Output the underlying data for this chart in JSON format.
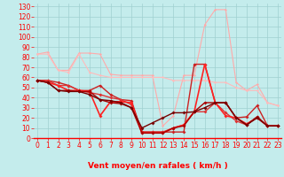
{
  "xlabel": "Vent moyen/en rafales ( km/h )",
  "background_color": "#c4ecec",
  "grid_color": "#a0d0d0",
  "x_ticks": [
    0,
    1,
    2,
    3,
    4,
    5,
    6,
    7,
    8,
    9,
    10,
    11,
    12,
    13,
    14,
    15,
    16,
    17,
    18,
    19,
    20,
    21,
    22,
    23
  ],
  "y_ticks": [
    0,
    10,
    20,
    30,
    40,
    50,
    60,
    70,
    80,
    90,
    100,
    110,
    120,
    130
  ],
  "ylim": [
    0,
    133
  ],
  "xlim": [
    -0.3,
    23.3
  ],
  "series": [
    {
      "color": "#ffaaaa",
      "linewidth": 0.8,
      "markersize": 1.5,
      "y": [
        83,
        85,
        67,
        67,
        84,
        84,
        83,
        63,
        62,
        62,
        62,
        62,
        12,
        22,
        62,
        62,
        112,
        127,
        127,
        55,
        47,
        53,
        35,
        32
      ]
    },
    {
      "color": "#ffbbbb",
      "linewidth": 0.8,
      "markersize": 1.5,
      "y": [
        83,
        83,
        67,
        65,
        83,
        65,
        62,
        60,
        60,
        60,
        60,
        60,
        60,
        57,
        57,
        57,
        57,
        55,
        55,
        50,
        47,
        47,
        35,
        32
      ]
    },
    {
      "color": "#cc2222",
      "linewidth": 1.0,
      "markersize": 2.0,
      "y": [
        57,
        57,
        55,
        52,
        47,
        47,
        52,
        43,
        38,
        37,
        6,
        6,
        6,
        6,
        6,
        73,
        73,
        35,
        35,
        20,
        21,
        32,
        12,
        12
      ]
    },
    {
      "color": "#dd3333",
      "linewidth": 1.0,
      "markersize": 2.0,
      "y": [
        57,
        57,
        52,
        52,
        47,
        45,
        43,
        40,
        38,
        33,
        6,
        6,
        6,
        10,
        13,
        26,
        26,
        35,
        25,
        17,
        13,
        21,
        12,
        12
      ]
    },
    {
      "color": "#ff2222",
      "linewidth": 1.2,
      "markersize": 2.0,
      "y": [
        57,
        55,
        52,
        47,
        47,
        46,
        22,
        36,
        36,
        35,
        5,
        5,
        5,
        10,
        13,
        26,
        73,
        35,
        22,
        20,
        14,
        20,
        12,
        12
      ]
    },
    {
      "color": "#aa0000",
      "linewidth": 1.0,
      "markersize": 2.0,
      "y": [
        57,
        55,
        47,
        47,
        46,
        46,
        38,
        35,
        34,
        30,
        5,
        5,
        5,
        10,
        12,
        26,
        35,
        35,
        35,
        20,
        13,
        21,
        12,
        12
      ]
    },
    {
      "color": "#770000",
      "linewidth": 1.0,
      "markersize": 2.0,
      "y": [
        57,
        55,
        47,
        46,
        46,
        43,
        38,
        37,
        35,
        30,
        10,
        15,
        20,
        25,
        25,
        26,
        30,
        35,
        35,
        20,
        13,
        20,
        12,
        12
      ]
    }
  ],
  "arrows": [
    "↗",
    "↗",
    "↗",
    "↗",
    "↗",
    "↗",
    "↗",
    "→",
    "→",
    "↗",
    "→",
    "↓",
    "↙",
    "↙",
    "↙",
    "↗",
    "↗",
    "↗",
    "→",
    "→",
    "↗",
    "↗",
    "↗",
    "↗"
  ],
  "xlabel_fontsize": 6.5,
  "tick_fontsize": 5.5
}
